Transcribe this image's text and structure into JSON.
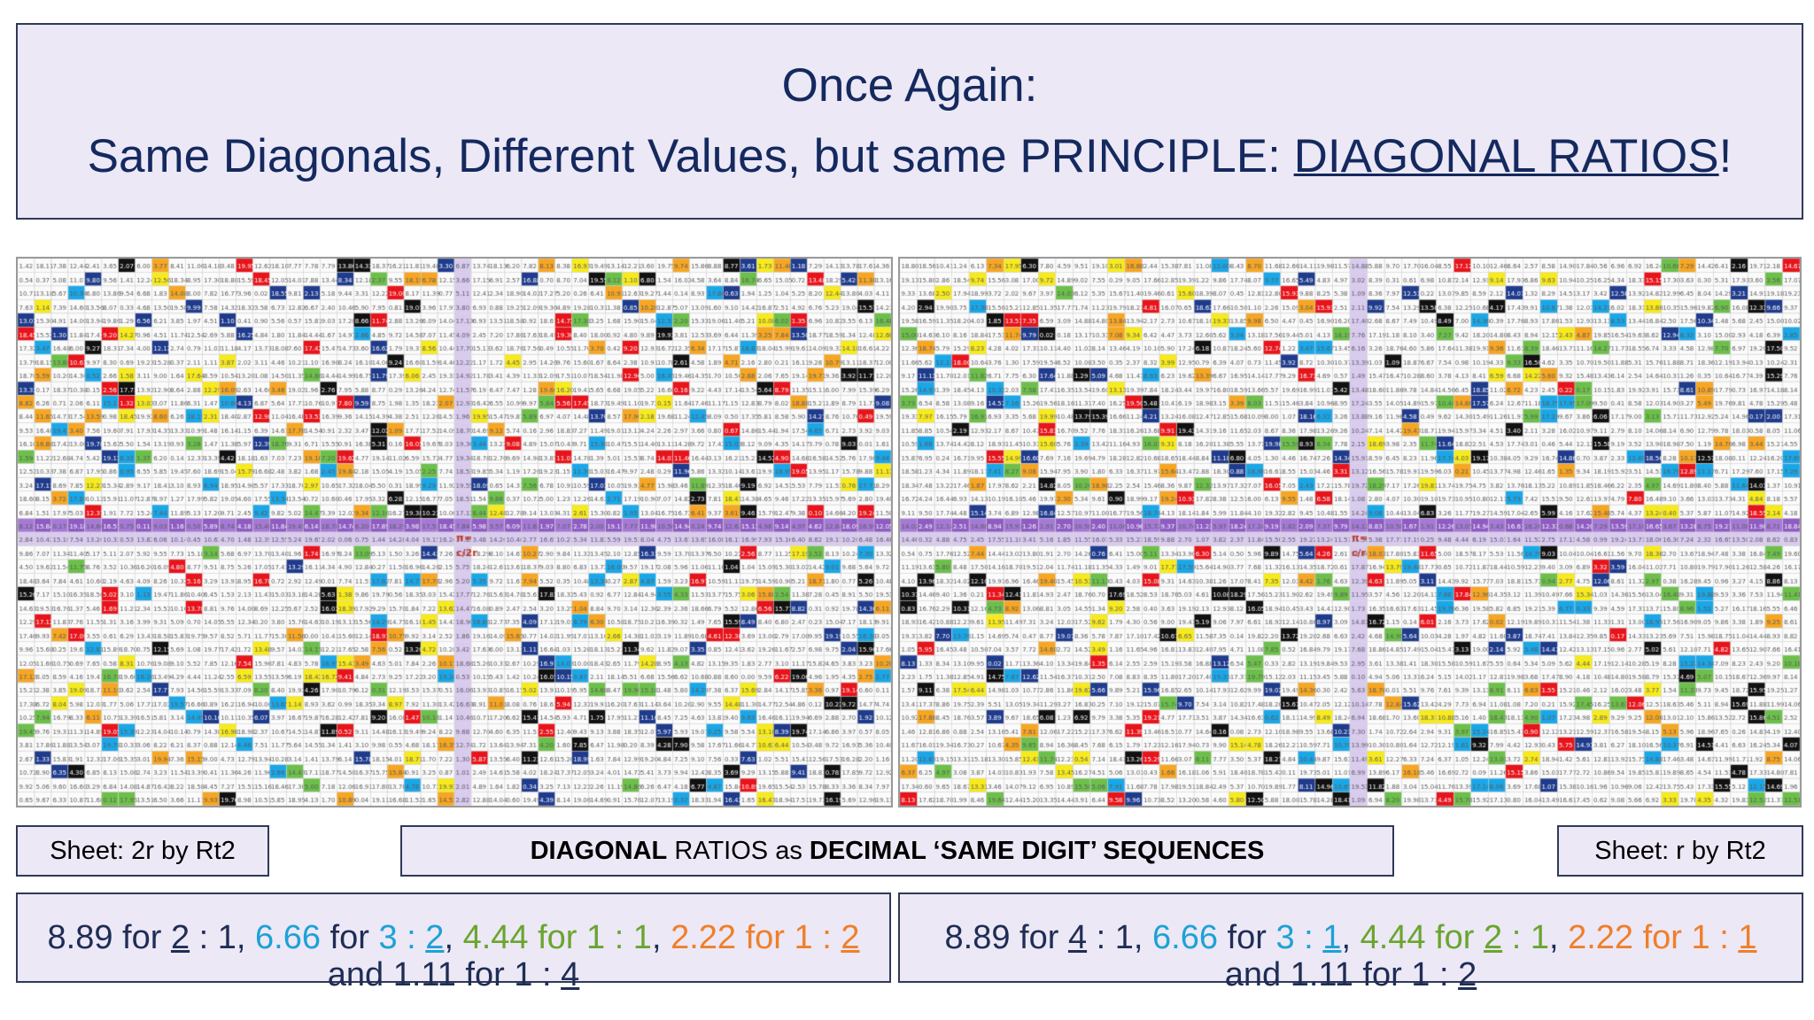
{
  "title": {
    "line1": "Once Again:",
    "line2_prefix": "Same Diagonals, Different Values, but same PRINCIPLE: ",
    "line2_underlined": "DIAGONAL RATIOS",
    "line2_suffix": "!"
  },
  "sheets": {
    "left": {
      "name": "Sheet: 2r by Rt2",
      "center_row_label": "c/2r",
      "center_header_label": "π="
    },
    "right": {
      "name": "Sheet: r by Rt2",
      "center_row_label": "c/r",
      "center_header_label": "π="
    }
  },
  "subtitle": {
    "bold1": "DIAGONAL",
    "normal": " RATIOS as ",
    "bold2": "DECIMAL ‘SAME DIGIT’ SEQUENCES"
  },
  "captions": {
    "left": {
      "p1_value": "8.89",
      "p1_for": " for ",
      "p1_a": "2",
      "p1_sep": " : 1",
      "p2_value": "6.66",
      "p2_for": " for ",
      "p2_a": "3",
      "p2_sep": " : ",
      "p2_b": "2",
      "p3_value": "4.44",
      "p3_for": " for ",
      "p3_ratio": "1 : 1",
      "p4_value": "2.22",
      "p4_for": " for ",
      "p4_a": "1",
      "p4_sep": " : ",
      "p4_b": "2",
      "line2_prefix": "and 1.11 for 1 : ",
      "line2_b": "4"
    },
    "right": {
      "p1_value": "8.89",
      "p1_for": " for ",
      "p1_a": "4",
      "p1_sep": " : 1",
      "p2_value": "6.66",
      "p2_for": " for ",
      "p2_a": "3",
      "p2_sep": " : ",
      "p2_b": "1",
      "p3_value": "4.44",
      "p3_for": " for ",
      "p3_a": "2",
      "p3_sep": " : 1",
      "p4_value": "2.22",
      "p4_for": " for ",
      "p4_a": "1",
      "p4_sep": " : ",
      "p4_b": "1",
      "line2_prefix": "and 1.11 for 1 : ",
      "line2_b": "2"
    }
  },
  "colors": {
    "title_text": "#14295e",
    "box_fill": "#ece8f6",
    "highlight_red": "#e8141b",
    "highlight_black": "#111111",
    "highlight_navy": "#1f3b8c",
    "highlight_blue": "#1aa7e8",
    "highlight_green": "#6cc04a",
    "highlight_yellow": "#f7ea1d",
    "highlight_orange": "#f6a623",
    "header_purple": "#8e5cc2",
    "header_lavender": "#d9cbef"
  }
}
